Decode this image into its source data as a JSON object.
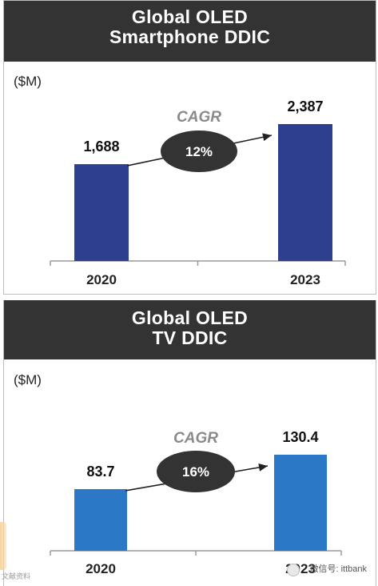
{
  "chart_data": [
    {
      "type": "bar",
      "title_lines": [
        "Global OLED",
        "Smartphone DDIC"
      ],
      "unit": "($M)",
      "categories": [
        "2020",
        "2023"
      ],
      "values": [
        1688,
        2387
      ],
      "value_labels": [
        "1,688",
        "2,387"
      ],
      "cagr_label": "CAGR",
      "cagr_value": "12%",
      "bar_color": "#2e3f8f",
      "ylim": [
        0,
        2387
      ]
    },
    {
      "type": "bar",
      "title_lines": [
        "Global OLED",
        "TV DDIC"
      ],
      "unit": "($M)",
      "categories": [
        "2020",
        "2023"
      ],
      "values": [
        83.7,
        130.4
      ],
      "value_labels": [
        "83.7",
        "130.4"
      ],
      "cagr_label": "CAGR",
      "cagr_value": "16%",
      "bar_color": "#2b78c6",
      "ylim": [
        0,
        130.4
      ]
    }
  ],
  "colors": {
    "header_bg": "#333333",
    "header_text": "#ffffff",
    "ellipse": "#333333",
    "cagr_text": "#8a8a8a"
  },
  "watermark": {
    "left": "文献资料",
    "right": "微信号: ittbank"
  }
}
